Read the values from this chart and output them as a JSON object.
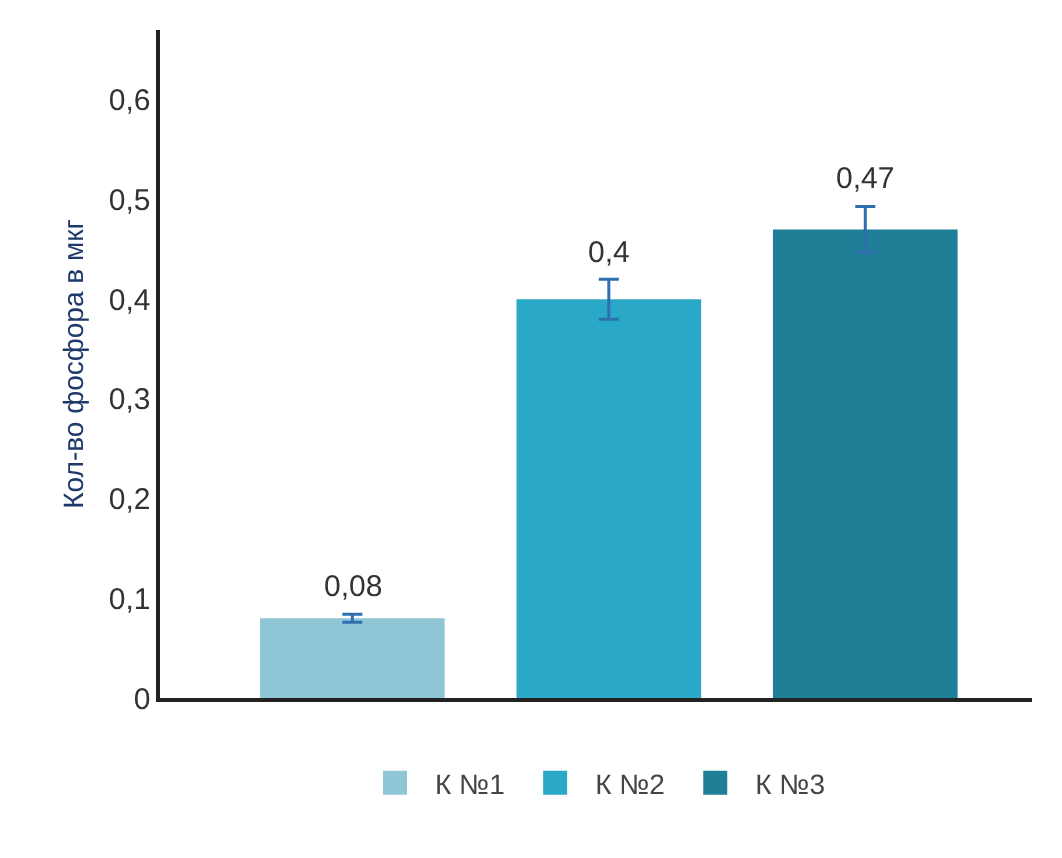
{
  "chart_data": {
    "type": "bar",
    "ylabel": "Кол-во фосфора в мкг",
    "categories": [
      null,
      null,
      null
    ],
    "series": [
      {
        "name": "К №1",
        "color": "#8fc6d6",
        "values": [
          0.08,
          null,
          null
        ],
        "errors": [
          0.004,
          null,
          null
        ],
        "value_labels": [
          "0,08",
          null,
          null
        ]
      },
      {
        "name": "К №2",
        "color": "#2aa8c8",
        "values": [
          null,
          0.4,
          null
        ],
        "errors": [
          null,
          0.02,
          null
        ],
        "value_labels": [
          null,
          "0,4",
          null
        ]
      },
      {
        "name": "К №3",
        "color": "#1f7f96",
        "values": [
          null,
          null,
          0.47
        ],
        "errors": [
          null,
          null,
          0.023
        ],
        "value_labels": [
          null,
          null,
          "0,47"
        ]
      }
    ],
    "ylim": [
      0,
      0.67
    ],
    "yticks": [
      {
        "value": 0,
        "label": "0"
      },
      {
        "value": 0.1,
        "label": "0,1"
      },
      {
        "value": 0.2,
        "label": "0,2"
      },
      {
        "value": 0.3,
        "label": "0,3"
      },
      {
        "value": 0.4,
        "label": "0,4"
      },
      {
        "value": 0.5,
        "label": "0,5"
      },
      {
        "value": 0.6,
        "label": "0,6"
      }
    ],
    "grid": false,
    "legend": "bottom"
  }
}
